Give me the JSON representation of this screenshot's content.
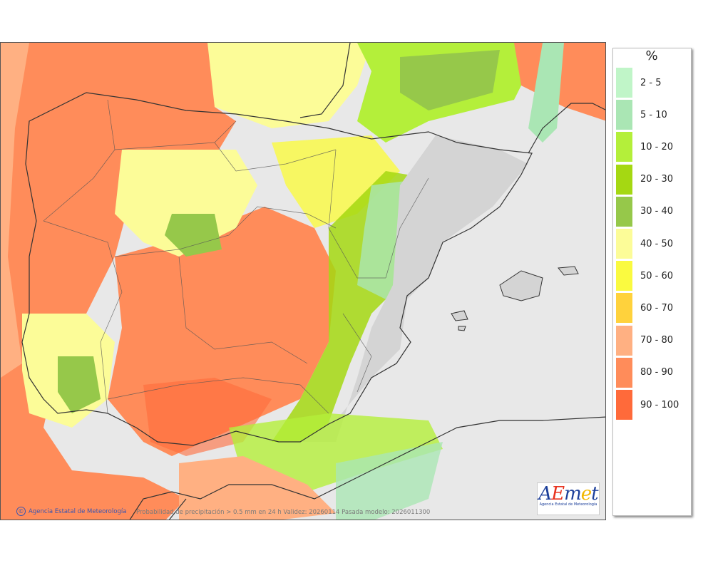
{
  "map": {
    "caption": "Probabilidad de precipitación > 0.5 mm en 24 h Validez: 20260114 Pasada modelo: 2026011300",
    "credit": "Agencia Estatal de Meteorología",
    "copyright_symbol": "©",
    "logo": {
      "letters": [
        "A",
        "E",
        "m",
        "e",
        "t"
      ],
      "subtitle": "Agencia Estatal de Meteorología"
    },
    "land_color": "#e8e8e8",
    "sea_color": "#ffffff"
  },
  "legend": {
    "unit": "%",
    "items": [
      {
        "label": "2 - 5",
        "color": "#c0f5c8"
      },
      {
        "label": "5 - 10",
        "color": "#aae6b4"
      },
      {
        "label": "10 - 20",
        "color": "#b4ef3a"
      },
      {
        "label": "20 - 30",
        "color": "#a5d812"
      },
      {
        "label": "30 - 40",
        "color": "#96c84a"
      },
      {
        "label": "40 - 50",
        "color": "#fcfc98"
      },
      {
        "label": "50 - 60",
        "color": "#fafa40"
      },
      {
        "label": "60 - 70",
        "color": "#ffd23c"
      },
      {
        "label": "70 - 80",
        "color": "#ffb082"
      },
      {
        "label": "80 - 90",
        "color": "#ff8c5a"
      },
      {
        "label": "90 - 100",
        "color": "#ff6a3a"
      }
    ]
  }
}
